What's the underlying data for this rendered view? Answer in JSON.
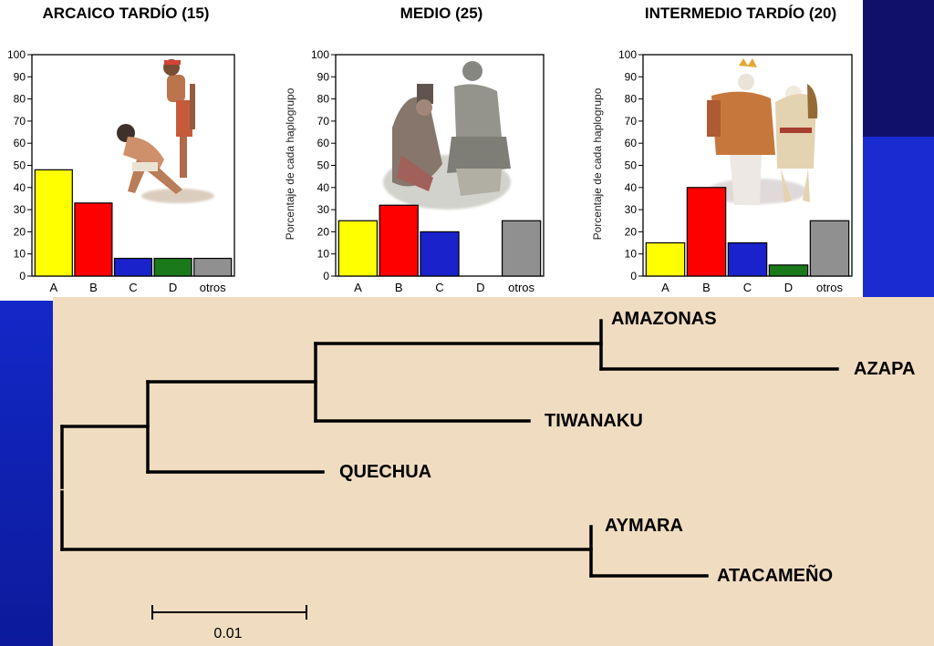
{
  "colors": {
    "A": "#ffff00",
    "B": "#ff0000",
    "C": "#1a22cc",
    "D": "#1a7a1a",
    "otros": "#909090",
    "tree_background": "#f0dcc0",
    "slide_blue_dark": "#10106b",
    "slide_blue": "#1a2bd0"
  },
  "chart_data": [
    {
      "type": "bar",
      "title": "ARCAICO TARDÍO (15)",
      "categories": [
        "A",
        "B",
        "C",
        "D",
        "otros"
      ],
      "values": [
        48,
        33,
        8,
        8,
        8
      ],
      "ylim": [
        0,
        100
      ],
      "yticks": [
        "0",
        "10",
        "20",
        "30",
        "40",
        "50",
        "60",
        "70",
        "80",
        "90",
        "100"
      ],
      "ylabel": "",
      "illustration": "hunter-gatherers-illustration"
    },
    {
      "type": "bar",
      "title": "MEDIO (25)",
      "categories": [
        "A",
        "B",
        "C",
        "D",
        "otros"
      ],
      "values": [
        25,
        32,
        20,
        0,
        25
      ],
      "ylim": [
        0,
        100
      ],
      "yticks": [
        "0",
        "10",
        "20",
        "30",
        "40",
        "50",
        "60",
        "70",
        "80",
        "90",
        "100"
      ],
      "ylabel": "Porcentaje de cada haplogrupo",
      "illustration": "seated-figures-illustration"
    },
    {
      "type": "bar",
      "title": "INTERMEDIO TARDÍO (20)",
      "categories": [
        "A",
        "B",
        "C",
        "D",
        "otros"
      ],
      "values": [
        15,
        40,
        15,
        5,
        25
      ],
      "ylim": [
        0,
        100
      ],
      "yticks": [
        "0",
        "10",
        "20",
        "30",
        "40",
        "50",
        "60",
        "70",
        "80",
        "90",
        "100"
      ],
      "ylabel": "Porcentaje de cada haplogrupo",
      "illustration": "andean-dancers-illustration"
    },
    {
      "type": "tree",
      "leaves": [
        "AMAZONAS",
        "AZAPA",
        "TIWANAKU",
        "QUECHUA",
        "AYMARA",
        "ATACAMEÑO"
      ],
      "scale_label": "0.01"
    }
  ]
}
